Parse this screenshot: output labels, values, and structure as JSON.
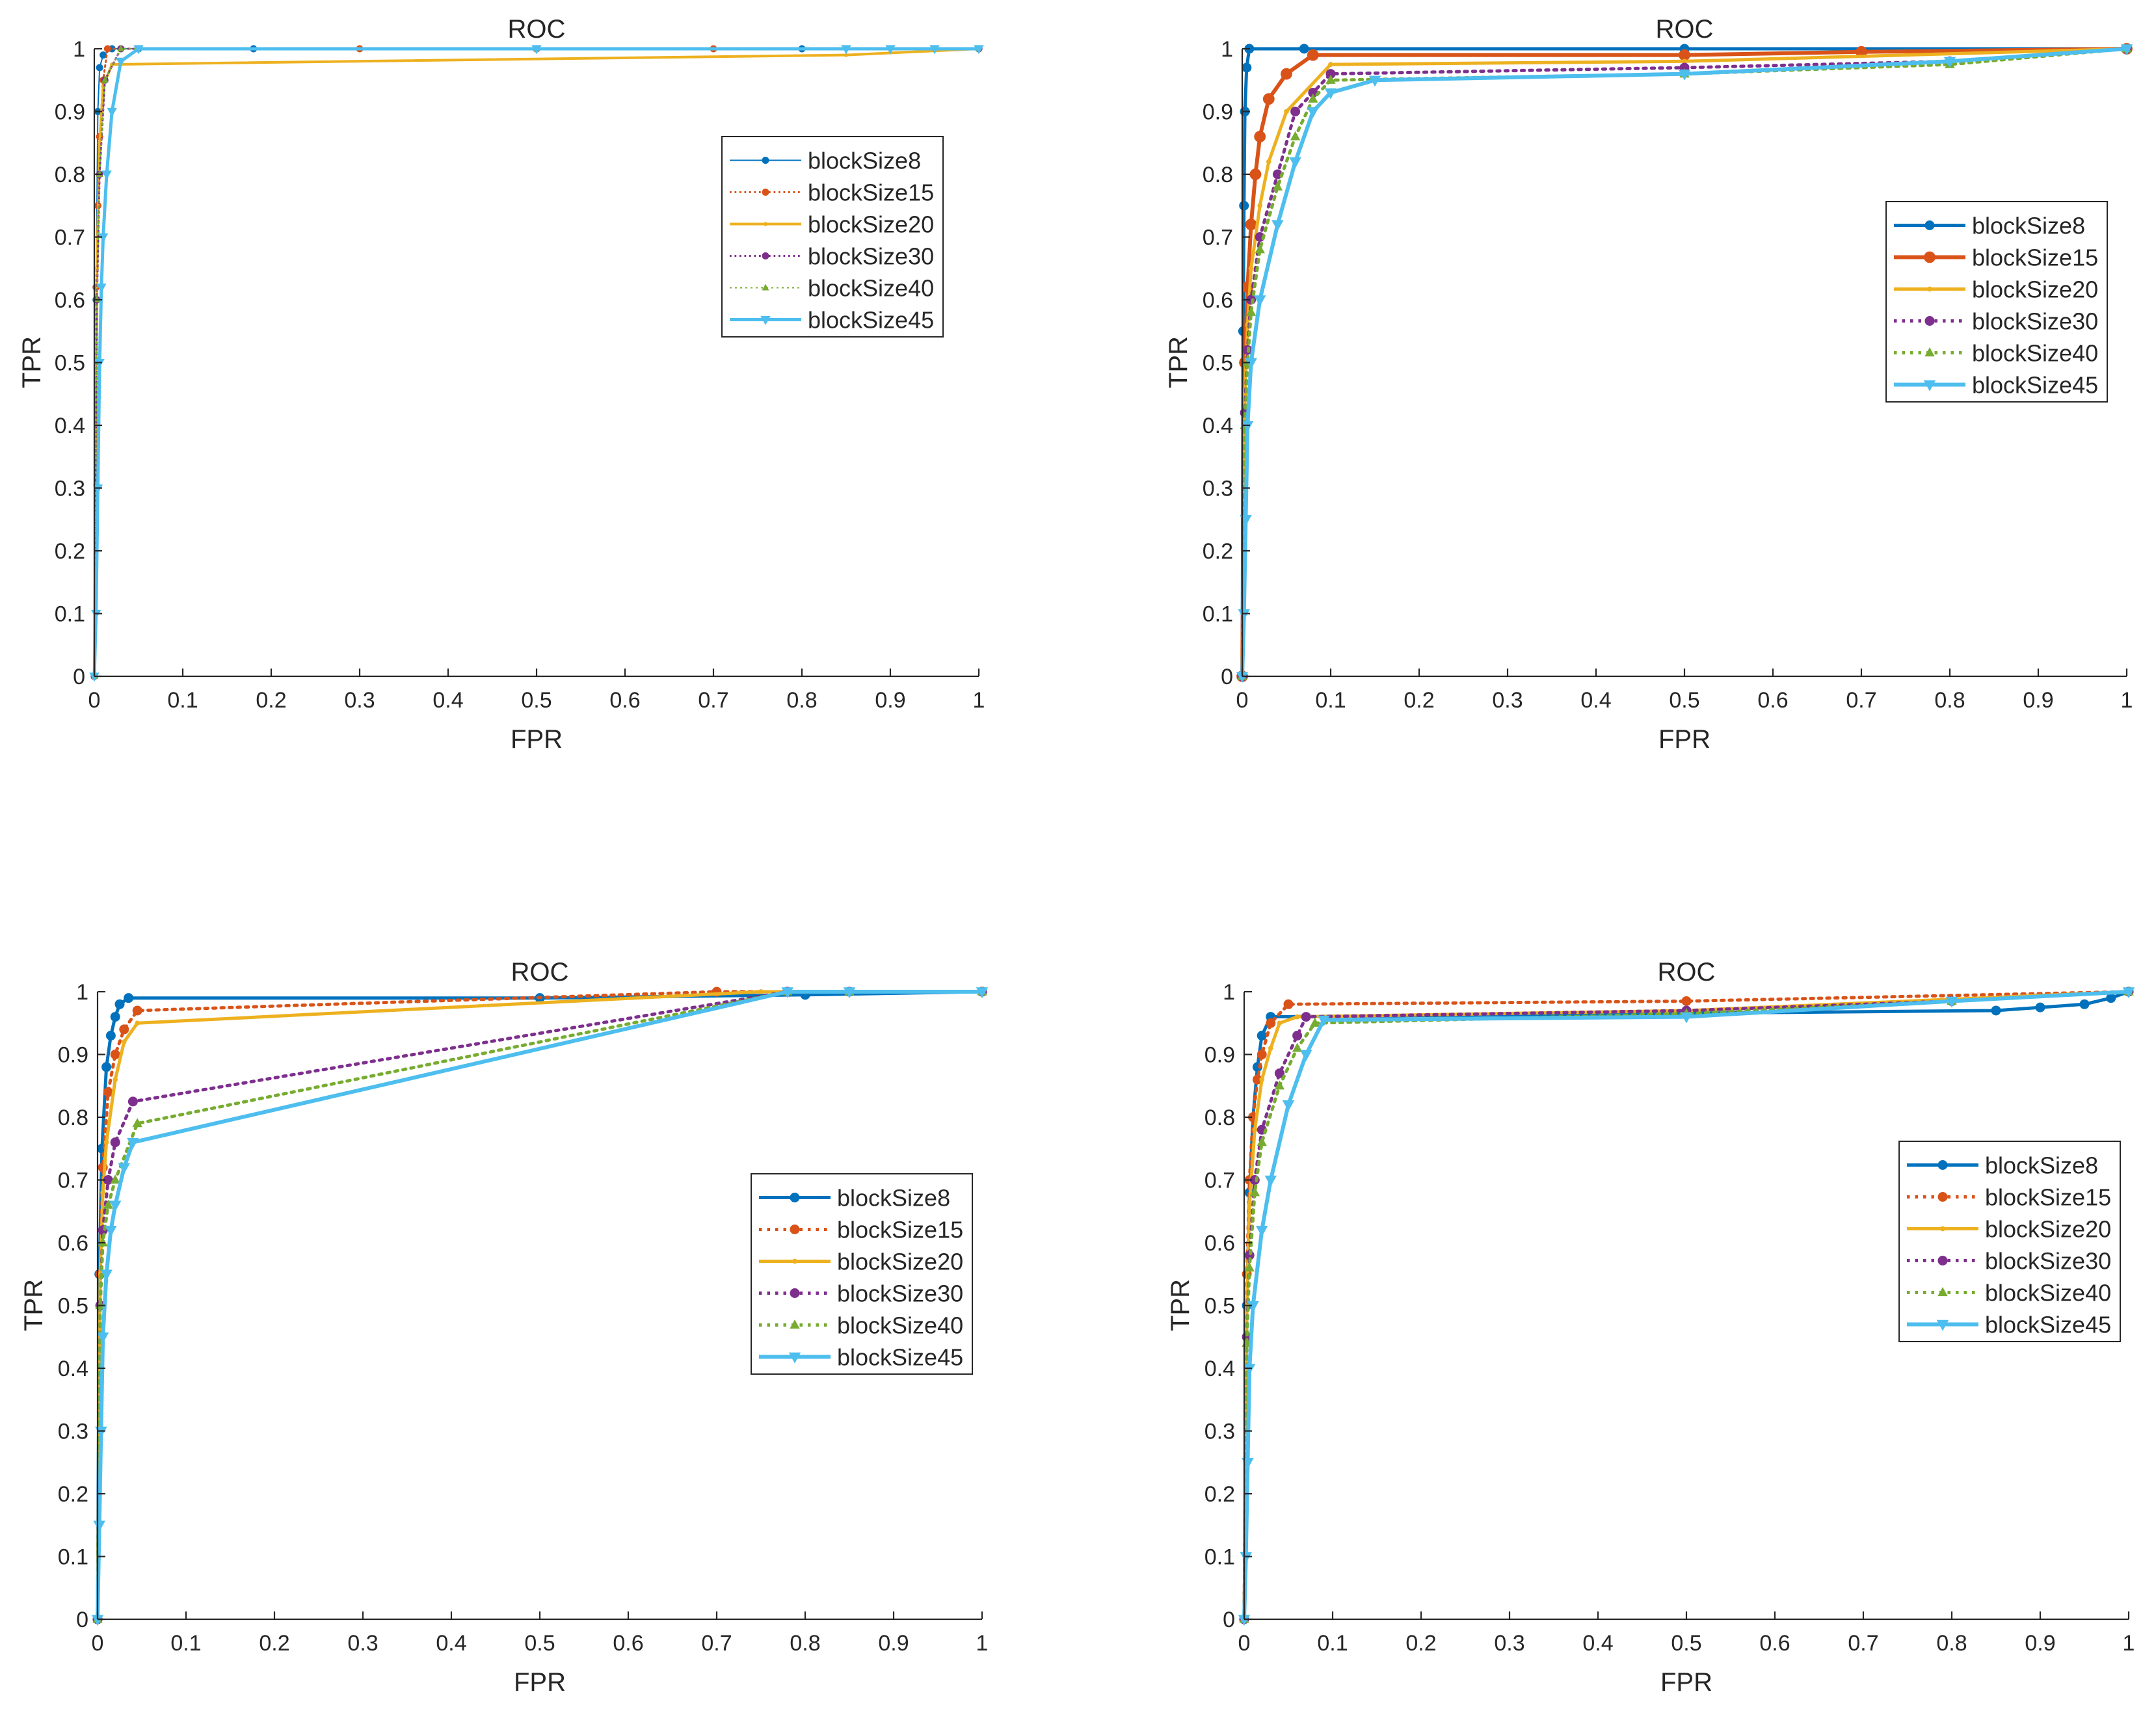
{
  "figure": {
    "background": "#ffffff"
  },
  "colors": {
    "blockSize8": "#0072bd",
    "blockSize15": "#d95319",
    "blockSize20": "#edb120",
    "blockSize30": "#7e2f8e",
    "blockSize40": "#77ac30",
    "blockSize45": "#4dbeee"
  },
  "chart_data": [
    {
      "id": "tl",
      "type": "line",
      "title": "ROC",
      "xlabel": "FPR",
      "ylabel": "TPR",
      "xlim": [
        0,
        1
      ],
      "ylim": [
        0,
        1
      ],
      "xticks": [
        "0",
        "0.1",
        "0.2",
        "0.3",
        "0.4",
        "0.5",
        "0.6",
        "0.7",
        "0.8",
        "0.9",
        "1"
      ],
      "yticks": [
        "0",
        "0.1",
        "0.2",
        "0.3",
        "0.4",
        "0.5",
        "0.6",
        "0.7",
        "0.8",
        "0.9",
        "1"
      ],
      "legend_position": "upper-right",
      "series": [
        {
          "name": "blockSize8",
          "color": "#0072bd",
          "dash": "solid",
          "marker": "circle",
          "width": 2,
          "x": [
            0,
            0.002,
            0.004,
            0.006,
            0.01,
            0.02,
            0.05,
            0.18,
            0.5,
            0.8,
            1
          ],
          "y": [
            0,
            0.6,
            0.9,
            0.97,
            0.99,
            1,
            1,
            1,
            1,
            1,
            1
          ]
        },
        {
          "name": "blockSize15",
          "color": "#d95319",
          "dash": "dotted",
          "marker": "circle",
          "width": 3,
          "x": [
            0,
            0.002,
            0.004,
            0.006,
            0.01,
            0.015,
            0.3,
            0.7,
            1
          ],
          "y": [
            0,
            0.62,
            0.75,
            0.86,
            0.95,
            1,
            1,
            1,
            1
          ]
        },
        {
          "name": "blockSize20",
          "color": "#edb120",
          "dash": "solid",
          "marker": "dot",
          "width": 4,
          "x": [
            0,
            0.003,
            0.006,
            0.01,
            0.02,
            0.85,
            1
          ],
          "y": [
            0,
            0.65,
            0.85,
            0.94,
            0.975,
            0.99,
            1
          ]
        },
        {
          "name": "blockSize30",
          "color": "#7e2f8e",
          "dash": "dotted",
          "marker": "circle",
          "width": 3,
          "x": [
            0,
            0.003,
            0.006,
            0.012,
            0.03,
            0.5,
            1
          ],
          "y": [
            0,
            0.6,
            0.8,
            0.95,
            1,
            1,
            1
          ]
        },
        {
          "name": "blockSize40",
          "color": "#77ac30",
          "dash": "dotted-thin",
          "marker": "triangle",
          "width": 2,
          "x": [
            0,
            0.003,
            0.006,
            0.012,
            0.03,
            0.5,
            1
          ],
          "y": [
            0,
            0.6,
            0.8,
            0.95,
            1,
            1,
            1
          ]
        },
        {
          "name": "blockSize45",
          "color": "#4dbeee",
          "dash": "solid",
          "marker": "triangle-down",
          "width": 5,
          "x": [
            0,
            0.002,
            0.004,
            0.006,
            0.008,
            0.01,
            0.014,
            0.02,
            0.03,
            0.05,
            0.5,
            0.85,
            0.9,
            0.95,
            1
          ],
          "y": [
            0,
            0.1,
            0.3,
            0.5,
            0.62,
            0.7,
            0.8,
            0.9,
            0.98,
            1,
            1,
            1,
            1,
            1,
            1
          ]
        }
      ]
    },
    {
      "id": "tr",
      "type": "line",
      "title": "ROC",
      "xlabel": "FPR",
      "ylabel": "TPR",
      "xlim": [
        0,
        1
      ],
      "ylim": [
        0,
        1
      ],
      "xticks": [
        "0",
        "0.1",
        "0.2",
        "0.3",
        "0.4",
        "0.5",
        "0.6",
        "0.7",
        "0.8",
        "0.9",
        "1"
      ],
      "yticks": [
        "0",
        "0.1",
        "0.2",
        "0.3",
        "0.4",
        "0.5",
        "0.6",
        "0.7",
        "0.8",
        "0.9",
        "1"
      ],
      "legend_position": "right",
      "series": [
        {
          "name": "blockSize8",
          "color": "#0072bd",
          "dash": "solid",
          "marker": "circle",
          "width": 5,
          "x": [
            0,
            0.001,
            0.002,
            0.003,
            0.005,
            0.008,
            0.07,
            0.5,
            1
          ],
          "y": [
            0,
            0.55,
            0.75,
            0.9,
            0.97,
            1,
            1,
            1,
            1
          ]
        },
        {
          "name": "blockSize15",
          "color": "#d95319",
          "dash": "solid",
          "marker": "circle",
          "width": 6,
          "x": [
            0,
            0.003,
            0.006,
            0.01,
            0.015,
            0.02,
            0.03,
            0.05,
            0.08,
            0.5,
            0.7,
            1
          ],
          "y": [
            0,
            0.5,
            0.62,
            0.72,
            0.8,
            0.86,
            0.92,
            0.96,
            0.99,
            0.99,
            0.995,
            1
          ]
        },
        {
          "name": "blockSize20",
          "color": "#edb120",
          "dash": "solid",
          "marker": "dot",
          "width": 5,
          "x": [
            0,
            0.003,
            0.006,
            0.01,
            0.02,
            0.03,
            0.05,
            0.1,
            0.5,
            1
          ],
          "y": [
            0,
            0.45,
            0.56,
            0.65,
            0.75,
            0.82,
            0.9,
            0.975,
            0.98,
            1
          ]
        },
        {
          "name": "blockSize30",
          "color": "#7e2f8e",
          "dash": "dotted",
          "marker": "circle",
          "width": 5,
          "x": [
            0,
            0.003,
            0.006,
            0.01,
            0.02,
            0.04,
            0.06,
            0.08,
            0.1,
            0.5,
            0.8,
            1
          ],
          "y": [
            0,
            0.42,
            0.52,
            0.6,
            0.7,
            0.8,
            0.9,
            0.93,
            0.96,
            0.97,
            0.98,
            1
          ]
        },
        {
          "name": "blockSize40",
          "color": "#77ac30",
          "dash": "dotted",
          "marker": "triangle",
          "width": 5,
          "x": [
            0,
            0.003,
            0.006,
            0.01,
            0.02,
            0.04,
            0.06,
            0.08,
            0.1,
            0.5,
            0.8,
            1
          ],
          "y": [
            0,
            0.4,
            0.5,
            0.58,
            0.68,
            0.78,
            0.86,
            0.92,
            0.95,
            0.96,
            0.975,
            1
          ]
        },
        {
          "name": "blockSize45",
          "color": "#4dbeee",
          "dash": "solid",
          "marker": "triangle-down",
          "width": 6,
          "x": [
            0,
            0.002,
            0.004,
            0.006,
            0.01,
            0.02,
            0.04,
            0.06,
            0.08,
            0.1,
            0.15,
            0.5,
            0.8,
            1
          ],
          "y": [
            0,
            0.1,
            0.25,
            0.4,
            0.5,
            0.6,
            0.72,
            0.82,
            0.9,
            0.93,
            0.95,
            0.96,
            0.98,
            1
          ]
        }
      ]
    },
    {
      "id": "bl",
      "type": "line",
      "title": "ROC",
      "xlabel": "FPR",
      "ylabel": "TPR",
      "xlim": [
        0,
        1
      ],
      "ylim": [
        0,
        1
      ],
      "xticks": [
        "0",
        "0.1",
        "0.2",
        "0.3",
        "0.4",
        "0.5",
        "0.6",
        "0.7",
        "0.8",
        "0.9",
        "1"
      ],
      "yticks": [
        "0",
        "0.1",
        "0.2",
        "0.3",
        "0.4",
        "0.5",
        "0.6",
        "0.7",
        "0.8",
        "0.9",
        "1"
      ],
      "legend_position": "right",
      "series": [
        {
          "name": "blockSize8",
          "color": "#0072bd",
          "dash": "solid",
          "marker": "circle",
          "width": 5,
          "x": [
            0,
            0.002,
            0.005,
            0.01,
            0.015,
            0.02,
            0.025,
            0.035,
            0.5,
            0.8,
            1
          ],
          "y": [
            0,
            0.55,
            0.75,
            0.88,
            0.93,
            0.96,
            0.98,
            0.99,
            0.99,
            0.995,
            1
          ]
        },
        {
          "name": "blockSize15",
          "color": "#d95319",
          "dash": "dotted",
          "marker": "circle",
          "width": 5,
          "x": [
            0,
            0.003,
            0.006,
            0.012,
            0.02,
            0.03,
            0.045,
            0.7,
            0.78,
            1
          ],
          "y": [
            0,
            0.55,
            0.72,
            0.84,
            0.9,
            0.94,
            0.97,
            1,
            1,
            1
          ]
        },
        {
          "name": "blockSize20",
          "color": "#edb120",
          "dash": "solid",
          "marker": "dot",
          "width": 5,
          "x": [
            0,
            0.003,
            0.006,
            0.01,
            0.02,
            0.03,
            0.045,
            0.75,
            0.85,
            1
          ],
          "y": [
            0,
            0.55,
            0.68,
            0.76,
            0.86,
            0.92,
            0.95,
            1,
            1,
            1
          ]
        },
        {
          "name": "blockSize30",
          "color": "#7e2f8e",
          "dash": "dotted",
          "marker": "circle",
          "width": 5,
          "x": [
            0,
            0.003,
            0.006,
            0.012,
            0.02,
            0.04,
            0.78,
            0.85,
            1
          ],
          "y": [
            0,
            0.5,
            0.62,
            0.7,
            0.76,
            0.825,
            1,
            1,
            1
          ]
        },
        {
          "name": "blockSize40",
          "color": "#77ac30",
          "dash": "dotted",
          "marker": "triangle",
          "width": 5,
          "x": [
            0,
            0.003,
            0.006,
            0.012,
            0.02,
            0.045,
            0.78,
            0.85,
            1
          ],
          "y": [
            0,
            0.5,
            0.6,
            0.66,
            0.7,
            0.79,
            1,
            1,
            1
          ]
        },
        {
          "name": "blockSize45",
          "color": "#4dbeee",
          "dash": "solid",
          "marker": "triangle-down",
          "width": 6,
          "x": [
            0,
            0.002,
            0.004,
            0.006,
            0.01,
            0.015,
            0.02,
            0.03,
            0.04,
            0.78,
            0.85,
            1
          ],
          "y": [
            0,
            0.15,
            0.3,
            0.45,
            0.55,
            0.62,
            0.66,
            0.72,
            0.76,
            1,
            1,
            1
          ]
        }
      ]
    },
    {
      "id": "br",
      "type": "line",
      "title": "ROC",
      "xlabel": "FPR",
      "ylabel": "TPR",
      "xlim": [
        0,
        1
      ],
      "ylim": [
        0,
        1
      ],
      "xticks": [
        "0",
        "0.1",
        "0.2",
        "0.3",
        "0.4",
        "0.5",
        "0.6",
        "0.7",
        "0.8",
        "0.9",
        "1"
      ],
      "yticks": [
        "0",
        "0.1",
        "0.2",
        "0.3",
        "0.4",
        "0.5",
        "0.6",
        "0.7",
        "0.8",
        "0.9",
        "1"
      ],
      "legend_position": "right",
      "series": [
        {
          "name": "blockSize8",
          "color": "#0072bd",
          "dash": "solid",
          "marker": "circle",
          "width": 5,
          "x": [
            0,
            0.003,
            0.006,
            0.01,
            0.015,
            0.02,
            0.03,
            0.85,
            0.9,
            0.95,
            0.98,
            1
          ],
          "y": [
            0,
            0.5,
            0.68,
            0.8,
            0.88,
            0.93,
            0.96,
            0.97,
            0.975,
            0.98,
            0.99,
            1
          ]
        },
        {
          "name": "blockSize15",
          "color": "#d95319",
          "dash": "dotted",
          "marker": "circle",
          "width": 5,
          "x": [
            0,
            0.003,
            0.006,
            0.01,
            0.015,
            0.02,
            0.03,
            0.05,
            0.5,
            1
          ],
          "y": [
            0,
            0.55,
            0.7,
            0.8,
            0.86,
            0.9,
            0.95,
            0.98,
            0.985,
            1
          ]
        },
        {
          "name": "blockSize20",
          "color": "#edb120",
          "dash": "solid",
          "marker": "dot",
          "width": 5,
          "x": [
            0,
            0.003,
            0.006,
            0.012,
            0.02,
            0.03,
            0.04,
            0.06,
            0.5,
            1
          ],
          "y": [
            0,
            0.5,
            0.66,
            0.78,
            0.86,
            0.91,
            0.95,
            0.96,
            0.97,
            1
          ]
        },
        {
          "name": "blockSize30",
          "color": "#7e2f8e",
          "dash": "dotted",
          "marker": "circle",
          "width": 5,
          "x": [
            0,
            0.003,
            0.006,
            0.012,
            0.02,
            0.04,
            0.06,
            0.07,
            0.5,
            0.8,
            1
          ],
          "y": [
            0,
            0.45,
            0.58,
            0.7,
            0.78,
            0.87,
            0.93,
            0.96,
            0.97,
            0.985,
            1
          ]
        },
        {
          "name": "blockSize40",
          "color": "#77ac30",
          "dash": "dotted",
          "marker": "triangle",
          "width": 5,
          "x": [
            0,
            0.003,
            0.006,
            0.012,
            0.02,
            0.04,
            0.06,
            0.08,
            0.5,
            0.8,
            1
          ],
          "y": [
            0,
            0.44,
            0.56,
            0.68,
            0.76,
            0.85,
            0.91,
            0.95,
            0.965,
            0.985,
            1
          ]
        },
        {
          "name": "blockSize45",
          "color": "#4dbeee",
          "dash": "solid",
          "marker": "triangle-down",
          "width": 6,
          "x": [
            0,
            0.002,
            0.004,
            0.006,
            0.01,
            0.02,
            0.03,
            0.05,
            0.07,
            0.09,
            0.5,
            0.8,
            1
          ],
          "y": [
            0,
            0.1,
            0.25,
            0.4,
            0.5,
            0.62,
            0.7,
            0.82,
            0.9,
            0.955,
            0.96,
            0.985,
            1
          ]
        }
      ]
    }
  ]
}
